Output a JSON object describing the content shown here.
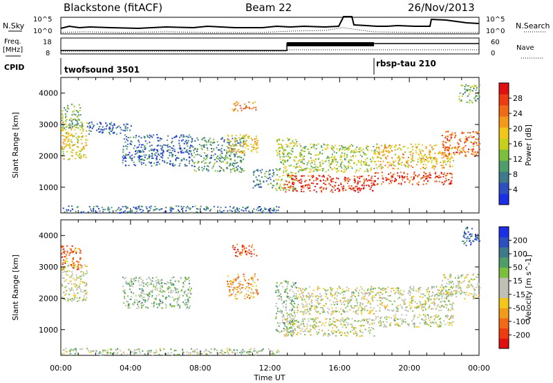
{
  "header": {
    "station": "Blackstone (fitACF)",
    "beam": "Beam 22",
    "date": "26/Nov/2013"
  },
  "status_panel": {
    "nsky_label": "N.Sky",
    "nsearch_label": "N.Search",
    "left_top_tick": "10^5",
    "left_bottom_tick": "10^0",
    "right_top_tick": "10^5",
    "right_bottom_tick": "10^0",
    "freq_label_line1": "Freq.",
    "freq_label_line2": "[MHz]",
    "freq_top_tick": "18",
    "freq_bottom_tick": "8",
    "nave_label": "Nave",
    "nave_top_tick": "60",
    "nave_bottom_tick": "0",
    "cpid_label": "CPID",
    "cpid_1": "twofsound 3501",
    "cpid_2": "rbsp-tau 210"
  },
  "xaxis": {
    "title": "Time UT",
    "ticks": [
      "00:00",
      "04:00",
      "08:00",
      "12:00",
      "16:00",
      "20:00",
      "00:00"
    ]
  },
  "chart_data": [
    {
      "type": "heatmap",
      "panel": "power",
      "xlabel": "Time UT",
      "ylabel": "Slant Range [km]",
      "x_range_hours": [
        0,
        24
      ],
      "ylim": [
        180,
        4500
      ],
      "y_ticks": [
        "1000",
        "2000",
        "3000",
        "4000"
      ],
      "colorbar": {
        "label": "Power [dB]",
        "range": [
          0,
          32
        ],
        "ticks": [
          "4",
          "8",
          "12",
          "16",
          "20",
          "24",
          "28"
        ],
        "colors": [
          "#1c2fe6",
          "#2d4fc1",
          "#3e7a8a",
          "#4f9d6a",
          "#7bbf3c",
          "#c8d01c",
          "#f3c61a",
          "#f39a18",
          "#f26a16",
          "#ee3b10",
          "#e01010"
        ]
      },
      "regions": [
        {
          "t": [
            0.0,
            1.5
          ],
          "r": [
            1900,
            3100
          ],
          "level": 0.55
        },
        {
          "t": [
            0.0,
            1.2
          ],
          "r": [
            2900,
            3700
          ],
          "level": 0.35
        },
        {
          "t": [
            1.5,
            4.0
          ],
          "r": [
            2700,
            3100
          ],
          "level": 0.15
        },
        {
          "t": [
            3.5,
            7.5
          ],
          "r": [
            1700,
            2700
          ],
          "level": 0.2
        },
        {
          "t": [
            7.5,
            10.5
          ],
          "r": [
            1500,
            2600
          ],
          "level": 0.3
        },
        {
          "t": [
            9.5,
            11.3
          ],
          "r": [
            2100,
            2700
          ],
          "level": 0.6
        },
        {
          "t": [
            9.8,
            11.2
          ],
          "r": [
            3450,
            3750
          ],
          "level": 0.75
        },
        {
          "t": [
            11.0,
            12.2
          ],
          "r": [
            1000,
            1600
          ],
          "level": 0.25
        },
        {
          "t": [
            12.3,
            13.5
          ],
          "r": [
            900,
            2600
          ],
          "level": 0.45
        },
        {
          "t": [
            12.7,
            18.0
          ],
          "r": [
            850,
            1400
          ],
          "level": 0.92
        },
        {
          "t": [
            13.5,
            18.0
          ],
          "r": [
            1500,
            2400
          ],
          "level": 0.45
        },
        {
          "t": [
            18.0,
            22.5
          ],
          "r": [
            1100,
            1500
          ],
          "level": 0.88
        },
        {
          "t": [
            18.0,
            22.5
          ],
          "r": [
            1600,
            2400
          ],
          "level": 0.6
        },
        {
          "t": [
            21.8,
            24.0
          ],
          "r": [
            2000,
            2800
          ],
          "level": 0.8
        },
        {
          "t": [
            22.8,
            24.0
          ],
          "r": [
            3700,
            4300
          ],
          "level": 0.4
        },
        {
          "t": [
            0.0,
            12.5
          ],
          "r": [
            200,
            420
          ],
          "level": 0.2
        }
      ]
    },
    {
      "type": "heatmap",
      "panel": "velocity",
      "xlabel": "Time UT",
      "ylabel": "Slant Range [km]",
      "x_range_hours": [
        0,
        24
      ],
      "ylim": [
        180,
        4500
      ],
      "y_ticks": [
        "1000",
        "2000",
        "3000",
        "4000"
      ],
      "colorbar": {
        "label": "Velocity [m s^-1]",
        "range": [
          -250,
          250
        ],
        "ticks": [
          "200",
          "100",
          "50",
          "15",
          "-15",
          "-50",
          "-100",
          "-200"
        ],
        "colors": [
          "#e01010",
          "#ee3b10",
          "#f26a16",
          "#f39a18",
          "#f3c61a",
          "#bfbfb5",
          "#bfbfb5",
          "#7bbf3c",
          "#4f9d6a",
          "#3e7a8a",
          "#2d4fc1",
          "#1c2fe6"
        ]
      },
      "regions": [
        {
          "t": [
            0.0,
            1.5
          ],
          "r": [
            1900,
            3100
          ],
          "level": 0.5
        },
        {
          "t": [
            0.0,
            1.2
          ],
          "r": [
            2900,
            3700
          ],
          "level": 0.2
        },
        {
          "t": [
            3.5,
            7.5
          ],
          "r": [
            1700,
            2700
          ],
          "level": 0.6
        },
        {
          "t": [
            9.5,
            11.3
          ],
          "r": [
            2000,
            2800
          ],
          "level": 0.3
        },
        {
          "t": [
            9.8,
            11.2
          ],
          "r": [
            3350,
            3750
          ],
          "level": 0.15
        },
        {
          "t": [
            12.3,
            13.5
          ],
          "r": [
            900,
            2600
          ],
          "level": 0.6
        },
        {
          "t": [
            12.7,
            18.0
          ],
          "r": [
            800,
            1400
          ],
          "level": 0.5
        },
        {
          "t": [
            13.5,
            18.0
          ],
          "r": [
            1500,
            2400
          ],
          "level": 0.5
        },
        {
          "t": [
            18.0,
            22.5
          ],
          "r": [
            1100,
            1500
          ],
          "level": 0.5
        },
        {
          "t": [
            18.0,
            22.5
          ],
          "r": [
            1600,
            2400
          ],
          "level": 0.5
        },
        {
          "t": [
            21.8,
            24.0
          ],
          "r": [
            2000,
            2800
          ],
          "level": 0.5
        },
        {
          "t": [
            23.0,
            24.0
          ],
          "r": [
            3700,
            4300
          ],
          "level": 0.85
        },
        {
          "t": [
            0.0,
            12.5
          ],
          "r": [
            200,
            420
          ],
          "level": 0.55
        }
      ]
    }
  ]
}
